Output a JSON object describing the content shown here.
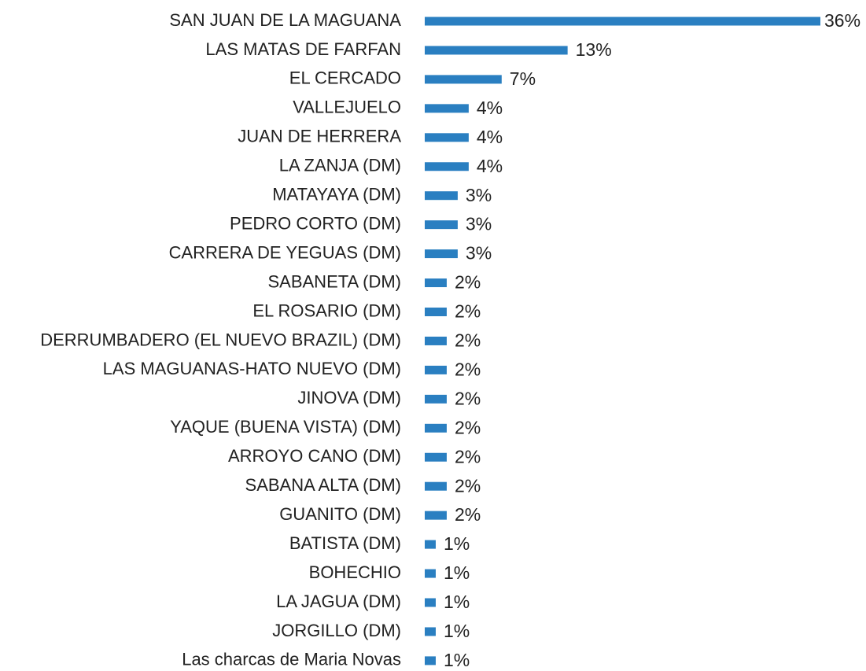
{
  "chart_data": {
    "type": "bar",
    "orientation": "horizontal",
    "color": "#2a7fc1",
    "categories": [
      "SAN JUAN DE LA MAGUANA",
      "LAS MATAS DE FARFAN",
      "EL CERCADO",
      "VALLEJUELO",
      "JUAN DE HERRERA",
      "LA ZANJA (DM)",
      "MATAYAYA (DM)",
      "PEDRO CORTO (DM)",
      "CARRERA DE YEGUAS (DM)",
      "SABANETA (DM)",
      "EL ROSARIO (DM)",
      "DERRUMBADERO (EL NUEVO BRAZIL) (DM)",
      "LAS MAGUANAS-HATO NUEVO (DM)",
      "JINOVA (DM)",
      "YAQUE (BUENA VISTA) (DM)",
      "ARROYO CANO (DM)",
      "SABANA ALTA (DM)",
      "GUANITO (DM)",
      "BATISTA (DM)",
      "BOHECHIO",
      "LA JAGUA (DM)",
      "JORGILLO (DM)",
      "Las charcas de Maria  Novas"
    ],
    "values": [
      36,
      13,
      7,
      4,
      4,
      4,
      3,
      3,
      3,
      2,
      2,
      2,
      2,
      2,
      2,
      2,
      2,
      2,
      1,
      1,
      1,
      1,
      1
    ],
    "value_labels": [
      "36%",
      "13%",
      "7%",
      "4%",
      "4%",
      "4%",
      "3%",
      "3%",
      "3%",
      "2%",
      "2%",
      "2%",
      "2%",
      "2%",
      "2%",
      "2%",
      "2%",
      "2%",
      "1%",
      "1%",
      "1%",
      "1%",
      "1%"
    ]
  }
}
